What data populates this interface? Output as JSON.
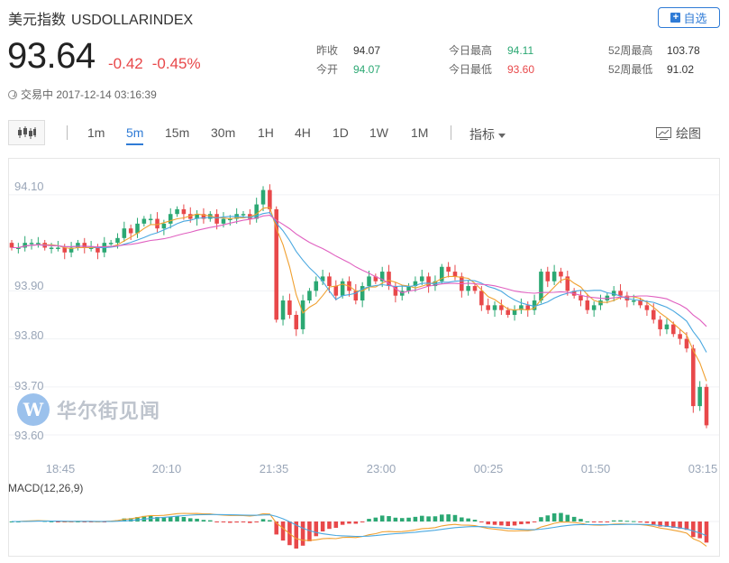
{
  "header": {
    "name": "美元指数",
    "code": "USDOLLARINDEX",
    "watch_label": "自选",
    "price": "93.64",
    "change": "-0.42",
    "change_pct": "-0.45%",
    "status": "交易中 2017-12-14 03:16:39"
  },
  "stats": {
    "prev_close": {
      "label": "昨收",
      "value": "94.07"
    },
    "open": {
      "label": "今开",
      "value": "94.07"
    },
    "day_high": {
      "label": "今日最高",
      "value": "94.11"
    },
    "day_low": {
      "label": "今日最低",
      "value": "93.60"
    },
    "wk52_high": {
      "label": "52周最高",
      "value": "103.78"
    },
    "wk52_low": {
      "label": "52周最低",
      "value": "91.02"
    }
  },
  "toolbar": {
    "timeframes": [
      "1m",
      "5m",
      "15m",
      "30m",
      "1H",
      "4H",
      "1D",
      "1W",
      "1M"
    ],
    "active": "5m",
    "indicator_label": "指标",
    "draw_label": "绘图"
  },
  "watermark": {
    "badge": "W",
    "text": "华尔街见闻"
  },
  "colors": {
    "up": "#2ba873",
    "down": "#e8484a",
    "accent": "#2f7bd6",
    "ma_short": "#f0a030",
    "ma_mid": "#4aa8e0",
    "ma_long": "#e060c0"
  },
  "chart_data": {
    "type": "candlestick",
    "y_ticks": [
      "94.10",
      "93.90",
      "93.80",
      "93.70",
      "93.60"
    ],
    "ylim": [
      93.57,
      94.16
    ],
    "x_ticks": [
      "18:45",
      "20:10",
      "21:35",
      "23:00",
      "00:25",
      "01:50",
      "03:15"
    ],
    "closes": [
      93.99,
      93.99,
      94.0,
      94.0,
      94.0,
      93.99,
      93.99,
      93.99,
      93.98,
      93.99,
      94.0,
      93.99,
      93.99,
      93.98,
      94.0,
      94.0,
      94.01,
      94.03,
      94.02,
      94.04,
      94.05,
      94.05,
      94.03,
      94.04,
      94.06,
      94.07,
      94.06,
      94.05,
      94.06,
      94.05,
      94.06,
      94.04,
      94.05,
      94.05,
      94.06,
      94.06,
      94.05,
      94.08,
      94.11,
      94.07,
      93.84,
      93.88,
      93.85,
      93.82,
      93.88,
      93.9,
      93.92,
      93.93,
      93.91,
      93.89,
      93.92,
      93.9,
      93.88,
      93.91,
      93.93,
      93.92,
      93.94,
      93.91,
      93.89,
      93.9,
      93.91,
      93.92,
      93.93,
      93.91,
      93.92,
      93.95,
      93.94,
      93.93,
      93.9,
      93.91,
      93.9,
      93.87,
      93.86,
      93.87,
      93.86,
      93.85,
      93.86,
      93.87,
      93.86,
      93.88,
      93.94,
      93.92,
      93.94,
      93.93,
      93.9,
      93.89,
      93.88,
      93.86,
      93.87,
      93.88,
      93.89,
      93.9,
      93.89,
      93.88,
      93.88,
      93.87,
      93.86,
      93.84,
      93.82,
      93.83,
      93.81,
      93.8,
      93.78,
      93.66,
      93.7,
      93.62
    ],
    "macd_label": "MACD(12,26,9)"
  }
}
